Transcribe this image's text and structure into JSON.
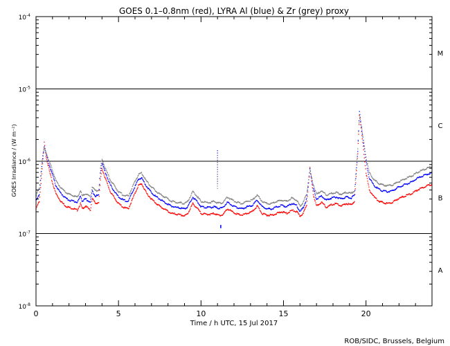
{
  "chart_data": {
    "type": "scatter",
    "title": "GOES 0.1–0.8nm (red), LYRA Al (blue) & Zr (grey) proxy",
    "xlabel": "Time / h UTC, 15 Jul 2017",
    "ylabel": "GOES Irradiance / (W m⁻²)",
    "xlim": [
      0,
      24
    ],
    "ylim": [
      1e-08,
      0.0001
    ],
    "y_scale": "log",
    "x_ticks": [
      0,
      5,
      10,
      15,
      20
    ],
    "y_ticks": [
      {
        "value": 1e-08,
        "mant": "10",
        "exp": "-8"
      },
      {
        "value": 1e-07,
        "mant": "10",
        "exp": "-7"
      },
      {
        "value": 1e-06,
        "mant": "10",
        "exp": "-6"
      },
      {
        "value": 1e-05,
        "mant": "10",
        "exp": "-5"
      },
      {
        "value": 0.0001,
        "mant": "10",
        "exp": "-4"
      }
    ],
    "threshold_lines": [
      1e-07,
      1e-06,
      1e-05
    ],
    "flare_classes": [
      {
        "label": "A",
        "value": 3.16e-08
      },
      {
        "label": "B",
        "value": 3.16e-07
      },
      {
        "label": "C",
        "value": 3.16e-06
      },
      {
        "label": "M",
        "value": 3.16e-05
      }
    ],
    "series": [
      {
        "name": "GOES 0.1–0.8nm",
        "color": "#ff0000",
        "x": [
          0.0,
          0.2,
          0.4,
          0.5,
          0.6,
          0.8,
          1.0,
          1.2,
          1.5,
          1.8,
          2.0,
          2.3,
          2.5,
          2.7,
          2.8,
          3.0,
          3.3,
          3.4,
          3.6,
          3.8,
          3.9,
          4.0,
          4.2,
          4.5,
          4.8,
          5.0,
          5.3,
          5.6,
          5.9,
          6.2,
          6.4,
          6.7,
          7.0,
          7.3,
          7.6,
          7.9,
          8.2,
          8.5,
          8.8,
          9.0,
          9.2,
          9.5,
          9.8,
          10.0,
          10.3,
          10.6,
          10.8,
          11.0,
          11.3,
          11.6,
          11.9,
          12.2,
          12.5,
          12.8,
          13.1,
          13.4,
          13.7,
          14.0,
          14.3,
          14.6,
          14.9,
          15.2,
          15.5,
          15.8,
          16.0,
          16.2,
          16.4,
          16.6,
          16.8,
          17.0,
          17.3,
          17.6,
          17.9,
          18.2,
          18.5,
          18.8,
          19.1,
          19.3,
          19.5,
          19.6,
          19.8,
          20.0,
          20.2,
          20.5,
          20.8,
          21.0,
          21.3,
          21.6,
          21.9,
          22.2,
          22.5,
          22.8,
          23.1,
          23.4,
          23.7,
          24.0
        ],
        "y": [
          2.2e-07,
          2.8e-07,
          9e-07,
          1.8e-06,
          1.2e-06,
          7.5e-07,
          5e-07,
          3.6e-07,
          2.8e-07,
          2.4e-07,
          2.3e-07,
          2.2e-07,
          2.1e-07,
          2.6e-07,
          2.2e-07,
          2.4e-07,
          2.1e-07,
          3.1e-07,
          2.6e-07,
          2.7e-07,
          5.5e-07,
          8e-07,
          5.8e-07,
          3.8e-07,
          3e-07,
          2.6e-07,
          2.3e-07,
          2.2e-07,
          3.2e-07,
          4.6e-07,
          4.9e-07,
          3.6e-07,
          3e-07,
          2.6e-07,
          2.3e-07,
          2.1e-07,
          1.9e-07,
          1.85e-07,
          1.8e-07,
          1.75e-07,
          1.9e-07,
          2.6e-07,
          2.2e-07,
          1.9e-07,
          1.85e-07,
          1.85e-07,
          1.9e-07,
          1.8e-07,
          1.8e-07,
          2.2e-07,
          2e-07,
          1.85e-07,
          1.8e-07,
          1.9e-07,
          2e-07,
          2.4e-07,
          1.9e-07,
          1.8e-07,
          1.8e-07,
          1.9e-07,
          2e-07,
          1.9e-07,
          2.1e-07,
          2e-07,
          1.75e-07,
          1.9e-07,
          2.5e-07,
          8e-07,
          3.5e-07,
          2.4e-07,
          2.7e-07,
          2.3e-07,
          2.5e-07,
          2.6e-07,
          2.4e-07,
          2.6e-07,
          2.5e-07,
          2.8e-07,
          1.3e-06,
          4.4e-06,
          1.8e-06,
          7e-07,
          4e-07,
          3.2e-07,
          2.8e-07,
          2.7e-07,
          2.6e-07,
          2.7e-07,
          3e-07,
          3.2e-07,
          3.4e-07,
          3.6e-07,
          4e-07,
          4.3e-07,
          4.6e-07,
          4.8e-07
        ]
      },
      {
        "name": "LYRA Al",
        "color": "#0000ff",
        "x": [
          0.0,
          0.2,
          0.4,
          0.5,
          0.6,
          0.8,
          1.0,
          1.2,
          1.5,
          1.8,
          2.0,
          2.3,
          2.5,
          2.7,
          2.8,
          3.0,
          3.3,
          3.4,
          3.6,
          3.8,
          3.9,
          4.0,
          4.2,
          4.5,
          4.8,
          5.0,
          5.3,
          5.6,
          5.9,
          6.2,
          6.4,
          6.7,
          7.0,
          7.3,
          7.6,
          7.9,
          8.2,
          8.5,
          8.8,
          9.0,
          9.2,
          9.5,
          9.8,
          10.0,
          10.3,
          10.6,
          10.8,
          11.0,
          11.3,
          11.6,
          11.9,
          12.2,
          12.5,
          12.8,
          13.1,
          13.4,
          13.7,
          14.0,
          14.3,
          14.6,
          14.9,
          15.2,
          15.5,
          15.8,
          16.0,
          16.2,
          16.4,
          16.6,
          16.8,
          17.0,
          17.3,
          17.6,
          17.9,
          18.2,
          18.5,
          18.8,
          19.1,
          19.3,
          19.5,
          19.6,
          19.8,
          20.0,
          20.2,
          20.5,
          20.8,
          21.0,
          21.3,
          21.6,
          21.9,
          22.2,
          22.5,
          22.8,
          23.1,
          23.4,
          23.7,
          24.0
        ],
        "y": [
          2.9e-07,
          3.5e-07,
          1.1e-06,
          1.6e-06,
          1.3e-06,
          9e-07,
          6.5e-07,
          4.6e-07,
          3.6e-07,
          3.1e-07,
          2.9e-07,
          2.8e-07,
          2.7e-07,
          3.3e-07,
          2.8e-07,
          3e-07,
          2.7e-07,
          3.9e-07,
          3.3e-07,
          3.4e-07,
          7e-07,
          9.5e-07,
          7e-07,
          4.7e-07,
          3.7e-07,
          3.2e-07,
          2.9e-07,
          2.8e-07,
          4e-07,
          5.6e-07,
          5.9e-07,
          4.5e-07,
          3.7e-07,
          3.2e-07,
          2.9e-07,
          2.6e-07,
          2.4e-07,
          2.3e-07,
          2.25e-07,
          2.2e-07,
          2.35e-07,
          3.2e-07,
          2.7e-07,
          2.35e-07,
          2.3e-07,
          2.3e-07,
          2.35e-07,
          2.25e-07,
          2.25e-07,
          2.7e-07,
          2.45e-07,
          2.3e-07,
          2.2e-07,
          2.35e-07,
          2.45e-07,
          2.9e-07,
          2.35e-07,
          2.2e-07,
          2.2e-07,
          2.35e-07,
          2.45e-07,
          2.35e-07,
          2.6e-07,
          2.45e-07,
          2e-07,
          2.3e-07,
          3e-07,
          8e-07,
          4.2e-07,
          3e-07,
          3.3e-07,
          2.9e-07,
          3.1e-07,
          3.2e-07,
          3e-07,
          3.2e-07,
          3.1e-07,
          3.4e-07,
          1.4e-06,
          4.8e-06,
          2.2e-06,
          1e-06,
          5.8e-07,
          4.6e-07,
          4.1e-07,
          3.9e-07,
          3.8e-07,
          3.9e-07,
          4.3e-07,
          4.6e-07,
          4.9e-07,
          5.2e-07,
          5.8e-07,
          6.2e-07,
          6.6e-07,
          6.9e-07
        ]
      },
      {
        "name": "Zr",
        "color": "#808080",
        "x": [
          0.0,
          0.2,
          0.4,
          0.5,
          0.6,
          0.8,
          1.0,
          1.2,
          1.5,
          1.8,
          2.0,
          2.3,
          2.5,
          2.7,
          2.8,
          3.0,
          3.3,
          3.4,
          3.6,
          3.8,
          3.9,
          4.0,
          4.2,
          4.5,
          4.8,
          5.0,
          5.3,
          5.6,
          5.9,
          6.2,
          6.4,
          6.7,
          7.0,
          7.3,
          7.6,
          7.9,
          8.2,
          8.5,
          8.8,
          9.0,
          9.2,
          9.5,
          9.8,
          10.0,
          10.3,
          10.6,
          10.8,
          11.0,
          11.3,
          11.6,
          11.9,
          12.2,
          12.5,
          12.8,
          13.1,
          13.4,
          13.7,
          14.0,
          14.3,
          14.6,
          14.9,
          15.2,
          15.5,
          15.8,
          16.0,
          16.2,
          16.4,
          16.6,
          16.8,
          17.0,
          17.3,
          17.6,
          17.9,
          18.2,
          18.5,
          18.8,
          19.1,
          19.3,
          19.5,
          19.6,
          19.8,
          20.0,
          20.2,
          20.5,
          20.8,
          21.0,
          21.3,
          21.6,
          21.9,
          22.2,
          22.5,
          22.8,
          23.1,
          23.4,
          23.7,
          24.0
        ],
        "y": [
          3.4e-07,
          4.2e-07,
          1.2e-06,
          1.5e-06,
          1.35e-06,
          1e-06,
          7.5e-07,
          5.4e-07,
          4.3e-07,
          3.7e-07,
          3.5e-07,
          3.3e-07,
          3.2e-07,
          3.9e-07,
          3.3e-07,
          3.6e-07,
          3.2e-07,
          4.5e-07,
          3.9e-07,
          4e-07,
          8e-07,
          1.05e-06,
          8e-07,
          5.5e-07,
          4.4e-07,
          3.8e-07,
          3.4e-07,
          3.3e-07,
          4.7e-07,
          6.5e-07,
          6.9e-07,
          5.3e-07,
          4.4e-07,
          3.8e-07,
          3.4e-07,
          3.1e-07,
          2.8e-07,
          2.7e-07,
          2.65e-07,
          2.6e-07,
          2.8e-07,
          3.8e-07,
          3.2e-07,
          2.8e-07,
          2.7e-07,
          2.7e-07,
          2.8e-07,
          2.65e-07,
          2.65e-07,
          3.2e-07,
          2.9e-07,
          2.7e-07,
          2.6e-07,
          2.8e-07,
          2.9e-07,
          3.4e-07,
          2.8e-07,
          2.6e-07,
          2.6e-07,
          2.8e-07,
          2.9e-07,
          2.8e-07,
          3.1e-07,
          2.9e-07,
          2.4e-07,
          2.7e-07,
          3.5e-07,
          7.5e-07,
          4.8e-07,
          3.5e-07,
          3.9e-07,
          3.4e-07,
          3.6e-07,
          3.7e-07,
          3.5e-07,
          3.7e-07,
          3.6e-07,
          3.9e-07,
          1.45e-06,
          4.5e-06,
          2.3e-06,
          1.15e-06,
          7e-07,
          5.5e-07,
          4.9e-07,
          4.7e-07,
          4.6e-07,
          4.7e-07,
          5.1e-07,
          5.5e-07,
          5.9e-07,
          6.3e-07,
          7e-07,
          7.5e-07,
          8e-07,
          8.4e-07
        ]
      }
    ],
    "annotations": [
      {
        "series": "LYRA Al",
        "x": 11.0,
        "y": 1.4e-06
      },
      {
        "series": "Zr",
        "x": 11.0,
        "y": 1.2e-06
      },
      {
        "series": "LYRA Al",
        "x": 11.2,
        "y": 1.3e-07
      }
    ],
    "credit": "ROB/SIDC, Brussels, Belgium"
  }
}
